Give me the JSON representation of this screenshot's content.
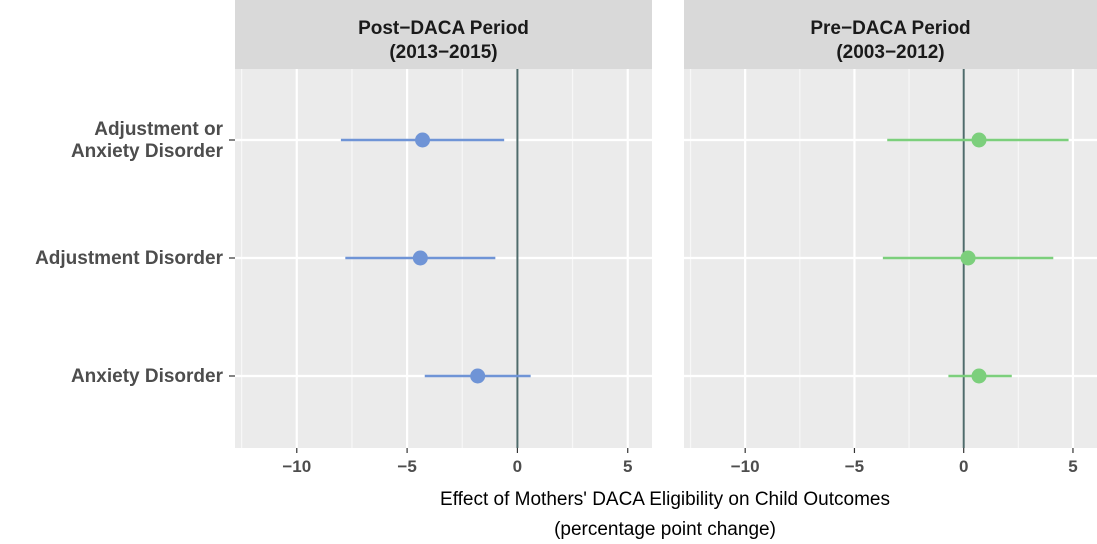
{
  "chart_data": {
    "type": "scatter",
    "subtype": "coefficient-plot",
    "xlabel": [
      "Effect of Mothers' DACA Eligibility on Child Outcomes",
      "(percentage point change)"
    ],
    "ylabel": "",
    "xlim": [
      -12.8,
      6.1
    ],
    "x_ticks": [
      -10,
      -5,
      0,
      5
    ],
    "x_tick_labels": [
      "−10",
      "−5",
      "0",
      "5"
    ],
    "grid": true,
    "reference_line_x": 0,
    "categories": [
      [
        "Adjustment or",
        "Anxiety Disorder"
      ],
      [
        "Adjustment Disorder"
      ],
      [
        "Anxiety Disorder"
      ]
    ],
    "panels": [
      {
        "title": [
          "Post−DACA Period",
          "(2013−2015)"
        ],
        "color": "#6f94d6",
        "points": [
          {
            "estimate": -4.3,
            "ci_low": -8.0,
            "ci_high": -0.6
          },
          {
            "estimate": -4.4,
            "ci_low": -7.8,
            "ci_high": -1.0
          },
          {
            "estimate": -1.8,
            "ci_low": -4.2,
            "ci_high": 0.6
          }
        ]
      },
      {
        "title": [
          "Pre−DACA Period",
          "(2003−2012)"
        ],
        "color": "#7ccf7c",
        "points": [
          {
            "estimate": 0.7,
            "ci_low": -3.5,
            "ci_high": 4.8
          },
          {
            "estimate": 0.2,
            "ci_low": -3.7,
            "ci_high": 4.1
          },
          {
            "estimate": 0.7,
            "ci_low": -0.7,
            "ci_high": 2.2
          }
        ]
      }
    ]
  }
}
